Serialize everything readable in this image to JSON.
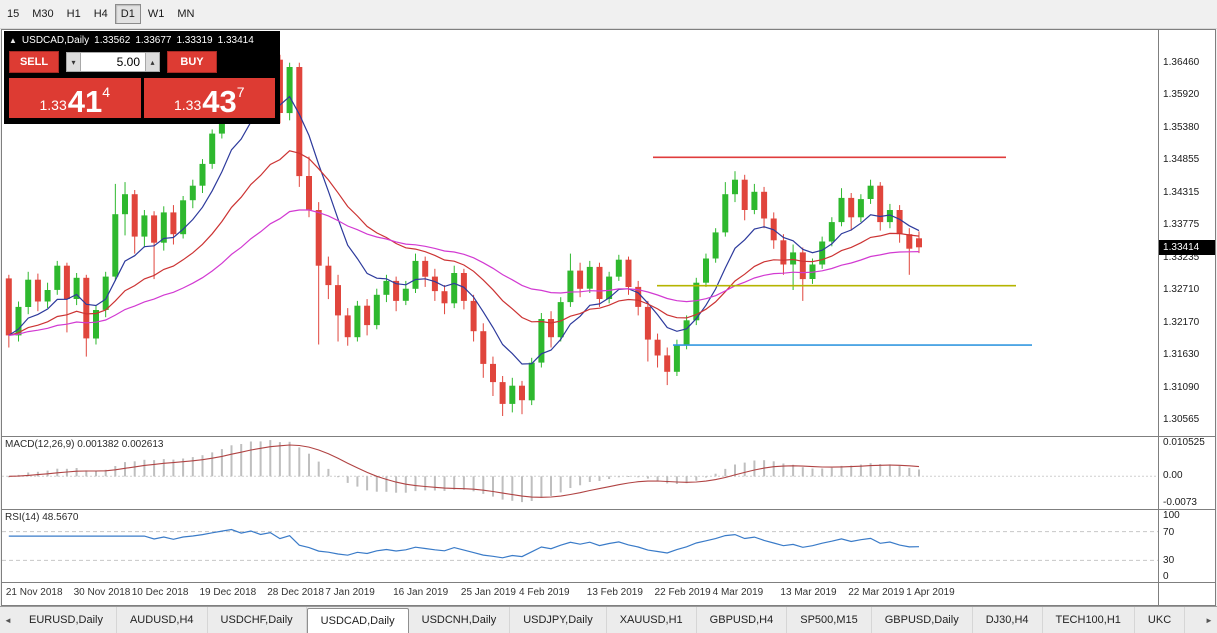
{
  "toolbar": {
    "timeframes": [
      {
        "label": "15",
        "active": false
      },
      {
        "label": "M30",
        "active": false
      },
      {
        "label": "H1",
        "active": false
      },
      {
        "label": "H4",
        "active": false
      },
      {
        "label": "D1",
        "active": true
      },
      {
        "label": "W1",
        "active": false
      },
      {
        "label": "MN",
        "active": false
      }
    ]
  },
  "chart_header": {
    "collapse_icon": "▲",
    "symbol": "USDCAD,Daily",
    "open": "1.33562",
    "high": "1.33677",
    "low": "1.33319",
    "close": "1.33414"
  },
  "one_click_trading": {
    "sell_label": "SELL",
    "buy_label": "BUY",
    "volume": "5.00",
    "volume_down_icon": "▾",
    "volume_up_icon": "▴",
    "bid": {
      "prefix": "1.33",
      "big": "41",
      "pip": "4"
    },
    "ask": {
      "prefix": "1.33",
      "big": "43",
      "pip": "7"
    }
  },
  "price_axis": {
    "labels": [
      "1.36460",
      "1.35920",
      "1.35380",
      "1.34855",
      "1.34315",
      "1.33775",
      "1.33235",
      "1.32710",
      "1.32170",
      "1.31630",
      "1.31090",
      "1.30565"
    ],
    "current_price": "1.33414"
  },
  "macd_pane": {
    "label": "MACD(12,26,9)",
    "value_main": "0.001382",
    "value_signal": "0.002613",
    "axis_labels": [
      "0.010525",
      "0.00",
      "-0.0073"
    ]
  },
  "rsi_pane": {
    "label": "RSI(14)",
    "value": "48.5670",
    "axis_labels": [
      "100",
      "70",
      "30",
      "0"
    ]
  },
  "tab_bar": {
    "left_arrow": "◄",
    "right_arrow": "►",
    "tabs": [
      {
        "label": "EURUSD,Daily",
        "active": false
      },
      {
        "label": "AUDUSD,H4",
        "active": false
      },
      {
        "label": "USDCHF,Daily",
        "active": false
      },
      {
        "label": "USDCAD,Daily",
        "active": true
      },
      {
        "label": "USDCNH,Daily",
        "active": false
      },
      {
        "label": "USDJPY,Daily",
        "active": false
      },
      {
        "label": "XAUUSD,H1",
        "active": false
      },
      {
        "label": "GBPUSD,H4",
        "active": false
      },
      {
        "label": "SP500,M15",
        "active": false
      },
      {
        "label": "GBPUSD,Daily",
        "active": false
      },
      {
        "label": "DJ30,H4",
        "active": false
      },
      {
        "label": "TECH100,H1",
        "active": false
      },
      {
        "label": "UKC",
        "active": false
      }
    ]
  },
  "chart_data": {
    "type": "candlestick",
    "symbol": "USDCAD",
    "timeframe": "Daily",
    "y_range": [
      1.303,
      1.37
    ],
    "up_color": "#2eb82e",
    "down_color": "#e0453c",
    "ohlc": [
      [
        1.329,
        1.3296,
        1.3176,
        1.3196
      ],
      [
        1.3196,
        1.3252,
        1.3186,
        1.3243
      ],
      [
        1.3243,
        1.3301,
        1.3231,
        1.3288
      ],
      [
        1.3288,
        1.3298,
        1.3236,
        1.3252
      ],
      [
        1.3252,
        1.3283,
        1.3241,
        1.3271
      ],
      [
        1.3271,
        1.3319,
        1.3263,
        1.3311
      ],
      [
        1.3311,
        1.3316,
        1.3201,
        1.3256
      ],
      [
        1.3256,
        1.3299,
        1.3246,
        1.3291
      ],
      [
        1.3291,
        1.3296,
        1.3161,
        1.3191
      ],
      [
        1.3191,
        1.3246,
        1.3181,
        1.3238
      ],
      [
        1.3238,
        1.3301,
        1.3226,
        1.3293
      ],
      [
        1.3293,
        1.3446,
        1.3286,
        1.3396
      ],
      [
        1.3396,
        1.3449,
        1.3361,
        1.3429
      ],
      [
        1.3429,
        1.3436,
        1.3331,
        1.3359
      ],
      [
        1.3359,
        1.3403,
        1.3341,
        1.3394
      ],
      [
        1.3394,
        1.3401,
        1.3289,
        1.3349
      ],
      [
        1.3349,
        1.3409,
        1.3336,
        1.3399
      ],
      [
        1.3399,
        1.3411,
        1.3346,
        1.3363
      ],
      [
        1.3363,
        1.3426,
        1.3356,
        1.3419
      ],
      [
        1.3419,
        1.3453,
        1.3406,
        1.3443
      ],
      [
        1.3443,
        1.3487,
        1.3431,
        1.3479
      ],
      [
        1.3479,
        1.3536,
        1.3471,
        1.3529
      ],
      [
        1.3529,
        1.3583,
        1.3521,
        1.3576
      ],
      [
        1.3576,
        1.3649,
        1.3566,
        1.3629
      ],
      [
        1.3629,
        1.3641,
        1.3561,
        1.3583
      ],
      [
        1.3583,
        1.3663,
        1.3576,
        1.3646
      ],
      [
        1.3646,
        1.3656,
        1.3581,
        1.3599
      ],
      [
        1.3599,
        1.3666,
        1.3591,
        1.3651
      ],
      [
        1.3651,
        1.3659,
        1.3546,
        1.3563
      ],
      [
        1.3563,
        1.3646,
        1.3551,
        1.3639
      ],
      [
        1.3639,
        1.3646,
        1.3441,
        1.3459
      ],
      [
        1.3459,
        1.3491,
        1.3391,
        1.3403
      ],
      [
        1.3403,
        1.3416,
        1.3181,
        1.3311
      ],
      [
        1.3311,
        1.3326,
        1.3256,
        1.3279
      ],
      [
        1.3279,
        1.3296,
        1.3186,
        1.3229
      ],
      [
        1.3229,
        1.3241,
        1.3179,
        1.3193
      ],
      [
        1.3193,
        1.3253,
        1.3186,
        1.3245
      ],
      [
        1.3245,
        1.3256,
        1.3196,
        1.3213
      ],
      [
        1.3213,
        1.3273,
        1.3206,
        1.3263
      ],
      [
        1.3263,
        1.3296,
        1.3251,
        1.3286
      ],
      [
        1.3286,
        1.3293,
        1.3236,
        1.3253
      ],
      [
        1.3253,
        1.3286,
        1.3246,
        1.3273
      ],
      [
        1.3273,
        1.3331,
        1.3266,
        1.3319
      ],
      [
        1.3319,
        1.3326,
        1.3276,
        1.3293
      ],
      [
        1.3293,
        1.3306,
        1.3253,
        1.3269
      ],
      [
        1.3269,
        1.3279,
        1.3231,
        1.3249
      ],
      [
        1.3249,
        1.3311,
        1.3241,
        1.3299
      ],
      [
        1.3299,
        1.3306,
        1.3239,
        1.3253
      ],
      [
        1.3253,
        1.3263,
        1.3186,
        1.3203
      ],
      [
        1.3203,
        1.3216,
        1.3126,
        1.3149
      ],
      [
        1.3149,
        1.3161,
        1.3096,
        1.3119
      ],
      [
        1.3119,
        1.3129,
        1.3063,
        1.3083
      ],
      [
        1.3083,
        1.3126,
        1.3069,
        1.3113
      ],
      [
        1.3113,
        1.3121,
        1.3066,
        1.3089
      ],
      [
        1.3089,
        1.3159,
        1.3081,
        1.3151
      ],
      [
        1.3151,
        1.3233,
        1.3143,
        1.3223
      ],
      [
        1.3223,
        1.3236,
        1.3176,
        1.3193
      ],
      [
        1.3193,
        1.3259,
        1.3186,
        1.3251
      ],
      [
        1.3251,
        1.3331,
        1.3243,
        1.3303
      ],
      [
        1.3303,
        1.3316,
        1.3259,
        1.3273
      ],
      [
        1.3273,
        1.3319,
        1.3266,
        1.3309
      ],
      [
        1.3309,
        1.3316,
        1.3243,
        1.3256
      ],
      [
        1.3256,
        1.3301,
        1.3249,
        1.3293
      ],
      [
        1.3293,
        1.3329,
        1.3286,
        1.3321
      ],
      [
        1.3321,
        1.3326,
        1.3263,
        1.3276
      ],
      [
        1.3276,
        1.3286,
        1.3229,
        1.3243
      ],
      [
        1.3243,
        1.3253,
        1.3153,
        1.3189
      ],
      [
        1.3189,
        1.3199,
        1.3143,
        1.3163
      ],
      [
        1.3163,
        1.3176,
        1.3114,
        1.3136
      ],
      [
        1.3136,
        1.3189,
        1.3129,
        1.3181
      ],
      [
        1.3181,
        1.3229,
        1.3173,
        1.3221
      ],
      [
        1.3221,
        1.3291,
        1.3213,
        1.3283
      ],
      [
        1.3283,
        1.3331,
        1.3276,
        1.3323
      ],
      [
        1.3323,
        1.3373,
        1.3316,
        1.3366
      ],
      [
        1.3366,
        1.3449,
        1.3359,
        1.3429
      ],
      [
        1.3429,
        1.3467,
        1.3416,
        1.3453
      ],
      [
        1.3453,
        1.3461,
        1.3386,
        1.3403
      ],
      [
        1.3403,
        1.3446,
        1.3396,
        1.3433
      ],
      [
        1.3433,
        1.3441,
        1.3373,
        1.3389
      ],
      [
        1.3389,
        1.3399,
        1.3339,
        1.3353
      ],
      [
        1.3353,
        1.3363,
        1.3296,
        1.3313
      ],
      [
        1.3313,
        1.3346,
        1.3271,
        1.3333
      ],
      [
        1.3333,
        1.3341,
        1.3253,
        1.3289
      ],
      [
        1.3289,
        1.3323,
        1.3281,
        1.3313
      ],
      [
        1.3313,
        1.3359,
        1.3306,
        1.3351
      ],
      [
        1.3351,
        1.3391,
        1.3343,
        1.3383
      ],
      [
        1.3383,
        1.3439,
        1.3376,
        1.3423
      ],
      [
        1.3423,
        1.3431,
        1.3369,
        1.3391
      ],
      [
        1.3391,
        1.3429,
        1.3383,
        1.3421
      ],
      [
        1.3421,
        1.3453,
        1.3413,
        1.3443
      ],
      [
        1.3443,
        1.3449,
        1.3369,
        1.3383
      ],
      [
        1.3383,
        1.3413,
        1.3373,
        1.3403
      ],
      [
        1.3403,
        1.3411,
        1.3349,
        1.3363
      ],
      [
        1.3363,
        1.3373,
        1.3296,
        1.3339
      ],
      [
        1.33562,
        1.33677,
        1.33319,
        1.33414
      ]
    ],
    "date_ticks": [
      [
        0,
        "21 Nov 2018"
      ],
      [
        7,
        "30 Nov 2018"
      ],
      [
        13,
        "10 Dec 2018"
      ],
      [
        20,
        "19 Dec 2018"
      ],
      [
        27,
        "28 Dec 2018"
      ],
      [
        33,
        "7 Jan 2019"
      ],
      [
        40,
        "16 Jan 2019"
      ],
      [
        47,
        "25 Jan 2019"
      ],
      [
        53,
        "4 Feb 2019"
      ],
      [
        60,
        "13 Feb 2019"
      ],
      [
        67,
        "22 Feb 2019"
      ],
      [
        73,
        "4 Mar 2019"
      ],
      [
        80,
        "13 Mar 2019"
      ],
      [
        87,
        "22 Mar 2019"
      ],
      [
        93,
        "1 Apr 2019"
      ]
    ],
    "moving_averages": [
      {
        "period": 8,
        "color": "#2d3a9c"
      },
      {
        "period": 20,
        "color": "#cc3333"
      },
      {
        "period": 42,
        "color": "#d23ad2"
      }
    ],
    "hlines": [
      {
        "price": 1.349,
        "color": "#e03c3c",
        "from": 0.563,
        "to": 0.868
      },
      {
        "price": 1.3278,
        "color": "#b5b400",
        "from": 0.566,
        "to": 0.876
      },
      {
        "price": 1.318,
        "color": "#3498e0",
        "from": 0.58,
        "to": 0.89
      }
    ],
    "macd": {
      "range": [
        -0.0088,
        0.0106
      ],
      "histogram_color": "#bfbfbf",
      "signal_color": "#b04343"
    },
    "rsi": {
      "color": "#3a7bc8",
      "levels": [
        70,
        30
      ]
    }
  }
}
